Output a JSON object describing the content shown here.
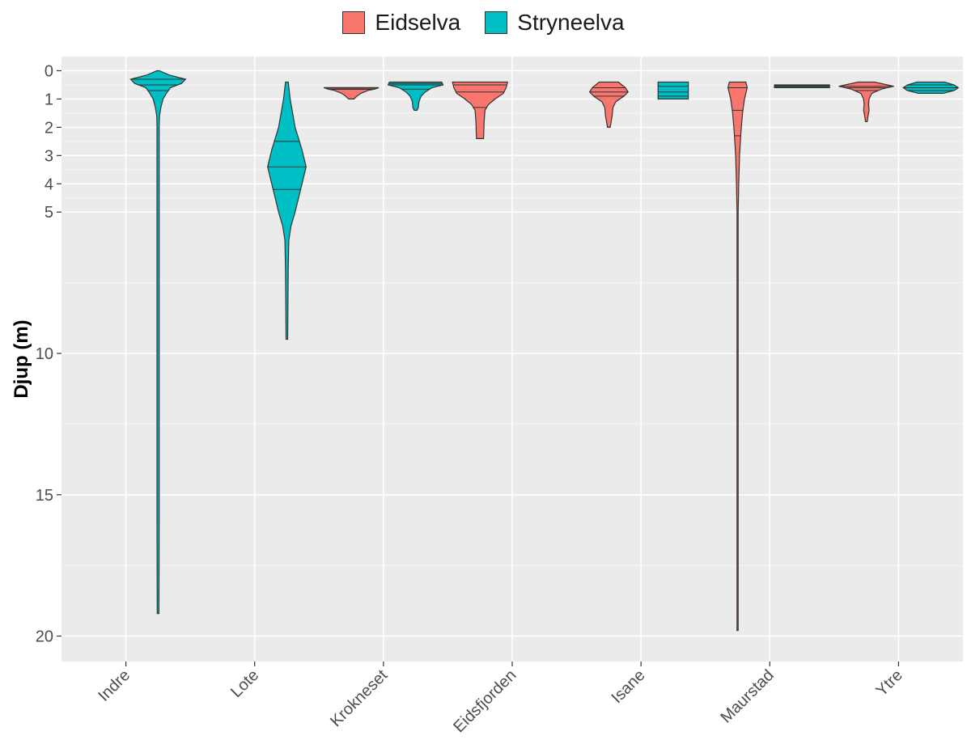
{
  "chart_data": {
    "type": "violin",
    "ylabel": "Djup (m)",
    "xlabel": "",
    "y_axis": "reversed",
    "ylim": [
      -0.5,
      20.9
    ],
    "y_ticks": [
      0,
      1,
      2,
      3,
      4,
      5,
      10,
      15,
      20
    ],
    "categories": [
      "Indre",
      "Lote",
      "Krokneset",
      "Eidsfjorden",
      "Isane",
      "Maurstad",
      "Ytre"
    ],
    "legend": {
      "position": "top"
    },
    "grid": true,
    "series": [
      {
        "name": "Eidselva",
        "color": "#F8766D"
      },
      {
        "name": "Stryneelva",
        "color": "#00BFC4"
      }
    ],
    "violins": [
      {
        "category": "Indre",
        "group": "Stryneelva",
        "min": 0,
        "max": 19.2,
        "quantiles": [
          0.3,
          0.5,
          0.7
        ],
        "profile": [
          [
            0,
            0.05
          ],
          [
            0.15,
            0.4
          ],
          [
            0.3,
            1
          ],
          [
            0.45,
            0.85
          ],
          [
            0.6,
            0.45
          ],
          [
            0.8,
            0.3
          ],
          [
            1.0,
            0.18
          ],
          [
            1.3,
            0.1
          ],
          [
            1.6,
            0.05
          ],
          [
            2.0,
            0.04
          ],
          [
            3,
            0.04
          ],
          [
            5,
            0.04
          ],
          [
            8,
            0.04
          ],
          [
            12,
            0.04
          ],
          [
            16,
            0.04
          ],
          [
            19.2,
            0.03
          ]
        ]
      },
      {
        "category": "Lote",
        "group": "Stryneelva",
        "min": 0.4,
        "max": 9.5,
        "quantiles": [
          2.5,
          3.4,
          4.2
        ],
        "profile": [
          [
            0.4,
            0.05
          ],
          [
            1.0,
            0.12
          ],
          [
            2.0,
            0.3
          ],
          [
            2.8,
            0.55
          ],
          [
            3.4,
            0.7
          ],
          [
            4.0,
            0.55
          ],
          [
            5.0,
            0.3
          ],
          [
            5.5,
            0.15
          ],
          [
            6.0,
            0.07
          ],
          [
            7,
            0.05
          ],
          [
            8,
            0.04
          ],
          [
            9.5,
            0.03
          ]
        ]
      },
      {
        "category": "Krokneset",
        "group": "Eidselva",
        "min": 0.6,
        "max": 1.0,
        "quantiles": [
          0.6,
          0.62,
          0.66
        ],
        "profile": [
          [
            0.6,
            1
          ],
          [
            0.65,
            0.85
          ],
          [
            0.7,
            0.6
          ],
          [
            0.8,
            0.35
          ],
          [
            0.9,
            0.2
          ],
          [
            1.0,
            0.1
          ]
        ]
      },
      {
        "category": "Krokneset",
        "group": "Stryneelva",
        "min": 0.4,
        "max": 1.4,
        "quantiles": [
          0.45,
          0.5,
          0.65
        ],
        "profile": [
          [
            0.4,
            0.95
          ],
          [
            0.5,
            1
          ],
          [
            0.6,
            0.6
          ],
          [
            0.75,
            0.35
          ],
          [
            0.9,
            0.2
          ],
          [
            1.1,
            0.12
          ],
          [
            1.3,
            0.1
          ],
          [
            1.4,
            0.05
          ]
        ]
      },
      {
        "category": "Eidsfjorden",
        "group": "Eidselva",
        "min": 0.4,
        "max": 2.4,
        "quantiles": [
          0.5,
          0.75,
          1.3
        ],
        "profile": [
          [
            0.4,
            1
          ],
          [
            0.6,
            0.95
          ],
          [
            0.8,
            0.85
          ],
          [
            1.0,
            0.55
          ],
          [
            1.2,
            0.3
          ],
          [
            1.4,
            0.18
          ],
          [
            1.8,
            0.15
          ],
          [
            2.4,
            0.13
          ]
        ]
      },
      {
        "category": "Isane",
        "group": "Eidselva",
        "min": 0.4,
        "max": 2.0,
        "quantiles": [
          0.6,
          0.75,
          0.9
        ],
        "profile": [
          [
            0.4,
            0.35
          ],
          [
            0.6,
            0.6
          ],
          [
            0.75,
            0.7
          ],
          [
            0.9,
            0.55
          ],
          [
            1.1,
            0.25
          ],
          [
            1.3,
            0.15
          ],
          [
            1.6,
            0.12
          ],
          [
            2.0,
            0.05
          ]
        ]
      },
      {
        "category": "Isane",
        "group": "Stryneelva",
        "min": 0.4,
        "max": 1.0,
        "quantiles": [
          0.55,
          0.75,
          0.9
        ],
        "profile": [
          [
            0.4,
            0.55
          ],
          [
            0.55,
            0.55
          ],
          [
            0.75,
            0.55
          ],
          [
            0.9,
            0.55
          ],
          [
            1.0,
            0.55
          ]
        ]
      },
      {
        "category": "Maurstad",
        "group": "Eidselva",
        "min": 0.4,
        "max": 19.8,
        "quantiles": [
          0.6,
          1.4,
          2.3
        ],
        "profile": [
          [
            0.4,
            0.3
          ],
          [
            0.6,
            0.35
          ],
          [
            1.0,
            0.25
          ],
          [
            1.5,
            0.18
          ],
          [
            2.2,
            0.12
          ],
          [
            3,
            0.07
          ],
          [
            4,
            0.04
          ],
          [
            5,
            0.02
          ],
          [
            10,
            0.02
          ],
          [
            19.8,
            0.02
          ]
        ]
      },
      {
        "category": "Maurstad",
        "group": "Stryneelva",
        "min": 0.5,
        "max": 0.6,
        "quantiles": [
          0.52,
          0.55,
          0.58
        ],
        "profile": [
          [
            0.5,
            1
          ],
          [
            0.55,
            1
          ],
          [
            0.6,
            1
          ]
        ]
      },
      {
        "category": "Ytre",
        "group": "Eidselva",
        "min": 0.4,
        "max": 1.8,
        "quantiles": [
          0.55,
          0.6,
          0.7
        ],
        "profile": [
          [
            0.4,
            0.3
          ],
          [
            0.55,
            1
          ],
          [
            0.65,
            0.55
          ],
          [
            0.8,
            0.2
          ],
          [
            1.0,
            0.1
          ],
          [
            1.2,
            0.08
          ],
          [
            1.4,
            0.1
          ],
          [
            1.6,
            0.06
          ],
          [
            1.8,
            0.03
          ]
        ]
      },
      {
        "category": "Ytre",
        "group": "Stryneelva",
        "min": 0.4,
        "max": 0.8,
        "quantiles": [
          0.5,
          0.6,
          0.7
        ],
        "profile": [
          [
            0.4,
            0.5
          ],
          [
            0.5,
            0.85
          ],
          [
            0.6,
            1
          ],
          [
            0.7,
            0.85
          ],
          [
            0.8,
            0.45
          ]
        ]
      }
    ]
  }
}
